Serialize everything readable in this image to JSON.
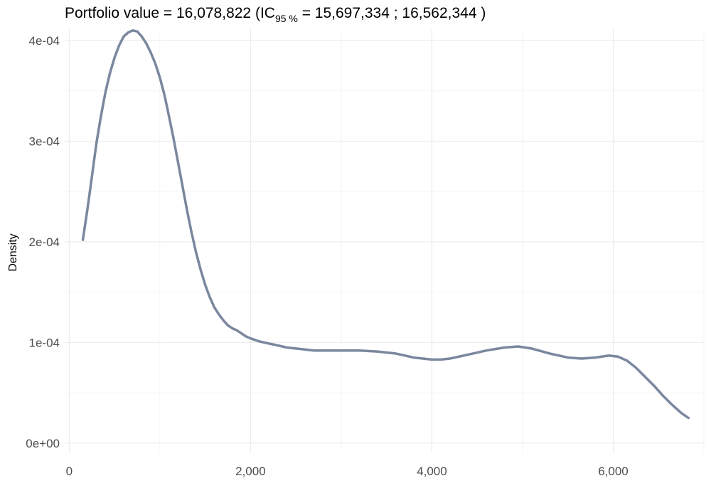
{
  "chart_data": {
    "type": "line",
    "title": {
      "prefix": "Portfolio value = 16,078,822 (IC",
      "subscript": "95 %",
      "suffix": " =  15,697,334 ; 16,562,344 )"
    },
    "xlabel": "",
    "ylabel": "Density",
    "xlim": [
      -50,
      7000
    ],
    "ylim": [
      -1e-05,
      0.000412
    ],
    "x_ticks": [
      {
        "value": 0,
        "label": "0"
      },
      {
        "value": 2000,
        "label": "2,000"
      },
      {
        "value": 4000,
        "label": "4,000"
      },
      {
        "value": 6000,
        "label": "6,000"
      }
    ],
    "x_minor": [
      1000,
      3000,
      5000,
      7000
    ],
    "y_ticks": [
      {
        "value": 0,
        "label": "0e+00"
      },
      {
        "value": 0.0001,
        "label": "1e-04"
      },
      {
        "value": 0.0002,
        "label": "2e-04"
      },
      {
        "value": 0.0003,
        "label": "3e-04"
      },
      {
        "value": 0.0004,
        "label": "4e-04"
      }
    ],
    "y_minor": [
      5e-05,
      0.00015,
      0.00025,
      0.00035
    ],
    "grid": true,
    "line_color": "#7a879e",
    "series": [
      {
        "x": [
          150,
          200,
          250,
          300,
          350,
          400,
          450,
          500,
          550,
          600,
          650,
          700,
          750,
          800,
          850,
          900,
          950,
          1000,
          1050,
          1100,
          1150,
          1200,
          1250,
          1300,
          1350,
          1400,
          1450,
          1500,
          1550,
          1600,
          1650,
          1700,
          1750,
          1800,
          1850,
          1900,
          1950,
          2000,
          2100,
          2200,
          2300,
          2400,
          2500,
          2600,
          2700,
          2800,
          2900,
          3000,
          3200,
          3400,
          3600,
          3800,
          4000,
          4100,
          4200,
          4400,
          4600,
          4800,
          4950,
          5100,
          5300,
          5500,
          5650,
          5800,
          5950,
          6050,
          6150,
          6250,
          6350,
          6450,
          6550,
          6650,
          6750,
          6830
        ],
        "y": [
          0.000202,
          0.000232,
          0.000265,
          0.000298,
          0.000325,
          0.000349,
          0.000368,
          0.000383,
          0.000395,
          0.000404,
          0.000408,
          0.00041,
          0.000409,
          0.000404,
          0.000397,
          0.000388,
          0.000377,
          0.000363,
          0.000346,
          0.000325,
          0.000303,
          0.000279,
          0.000255,
          0.000231,
          0.000209,
          0.000189,
          0.000172,
          0.000157,
          0.000145,
          0.000135,
          0.000128,
          0.000122,
          0.000117,
          0.000114,
          0.000112,
          0.000109,
          0.000106,
          0.000104,
          0.000101,
          9.9e-05,
          9.7e-05,
          9.5e-05,
          9.4e-05,
          9.3e-05,
          9.2e-05,
          9.2e-05,
          9.2e-05,
          9.2e-05,
          9.2e-05,
          9.1e-05,
          8.9e-05,
          8.5e-05,
          8.3e-05,
          8.3e-05,
          8.4e-05,
          8.8e-05,
          9.2e-05,
          9.5e-05,
          9.6e-05,
          9.4e-05,
          8.9e-05,
          8.5e-05,
          8.4e-05,
          8.5e-05,
          8.7e-05,
          8.6e-05,
          8.2e-05,
          7.5e-05,
          6.6e-05,
          5.7e-05,
          4.7e-05,
          3.8e-05,
          3e-05,
          2.5e-05
        ]
      }
    ]
  }
}
